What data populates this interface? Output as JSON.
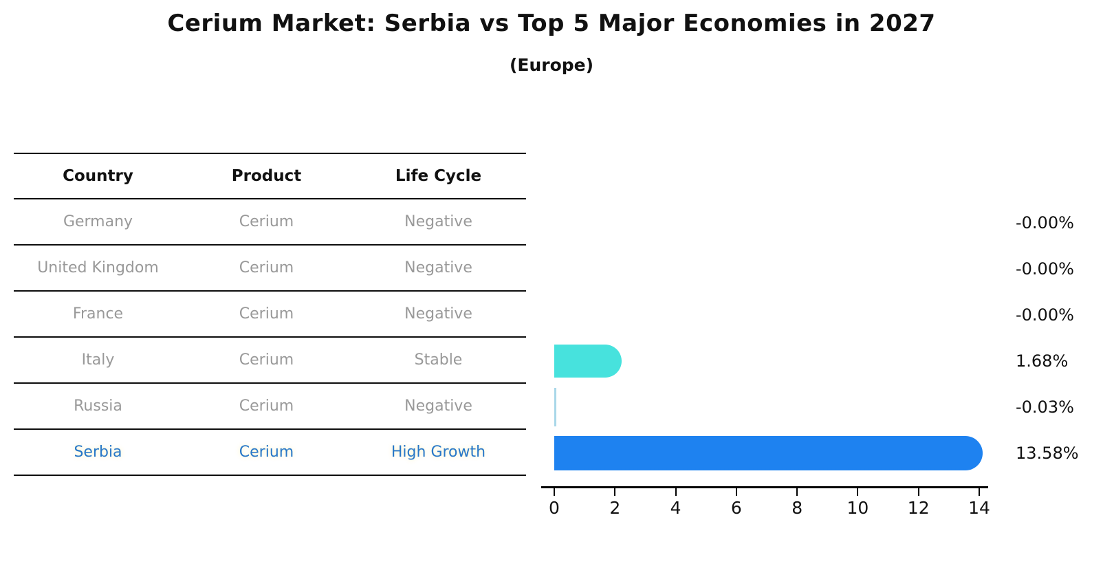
{
  "title": "Cerium Market: Serbia vs Top 5 Major Economies in 2027",
  "subtitle": "(Europe)",
  "table": {
    "headers": [
      "Country",
      "Product",
      "Life Cycle"
    ]
  },
  "rows": [
    {
      "country": "Germany",
      "product": "Cerium",
      "life_cycle": "Negative",
      "value": 0,
      "value_label": "-0.00%",
      "bar_style": "none",
      "bar_color": null,
      "highlight": false
    },
    {
      "country": "United Kingdom",
      "product": "Cerium",
      "life_cycle": "Negative",
      "value": 0,
      "value_label": "-0.00%",
      "bar_style": "none",
      "bar_color": null,
      "highlight": false
    },
    {
      "country": "France",
      "product": "Cerium",
      "life_cycle": "Negative",
      "value": 0,
      "value_label": "-0.00%",
      "bar_style": "none",
      "bar_color": null,
      "highlight": false
    },
    {
      "country": "Italy",
      "product": "Cerium",
      "life_cycle": "Stable",
      "value": 1.68,
      "value_label": "1.68%",
      "bar_style": "solid",
      "bar_color": "#47E2DD",
      "highlight": false
    },
    {
      "country": "Russia",
      "product": "Cerium",
      "life_cycle": "Negative",
      "value": -0.03,
      "value_label": "-0.03%",
      "bar_style": "thin",
      "bar_color": "#A9D7E9",
      "highlight": false
    },
    {
      "country": "Serbia",
      "product": "Cerium",
      "life_cycle": "High Growth",
      "value": 13.58,
      "value_label": "13.58%",
      "bar_style": "dotted",
      "bar_color": "#1E82F0",
      "highlight": true
    }
  ],
  "chart_data": {
    "type": "bar",
    "orientation": "horizontal",
    "title": "Cerium Market: Serbia vs Top 5 Major Economies in 2027",
    "subtitle": "(Europe)",
    "categories": [
      "Germany",
      "United Kingdom",
      "France",
      "Italy",
      "Russia",
      "Serbia"
    ],
    "values": [
      -0.0,
      -0.0,
      -0.0,
      1.68,
      -0.03,
      13.58
    ],
    "value_labels": [
      "-0.00%",
      "-0.00%",
      "-0.00%",
      "1.68%",
      "-0.03%",
      "13.58%"
    ],
    "xlabel": "",
    "ylabel": "",
    "xlim": [
      0,
      14
    ],
    "x_ticks": [
      0,
      2,
      4,
      6,
      8,
      10,
      12,
      14
    ],
    "grid": false,
    "legend": "none"
  },
  "colors": {
    "serbia_bar": "#1E82F0",
    "italy_bar": "#47E2DD",
    "russia_line": "#A9D7E9",
    "serbia_text": "#2878C8",
    "muted_text": "#999999",
    "header_text": "#111111",
    "axis": "#000000",
    "background": "#FFFFFF"
  }
}
